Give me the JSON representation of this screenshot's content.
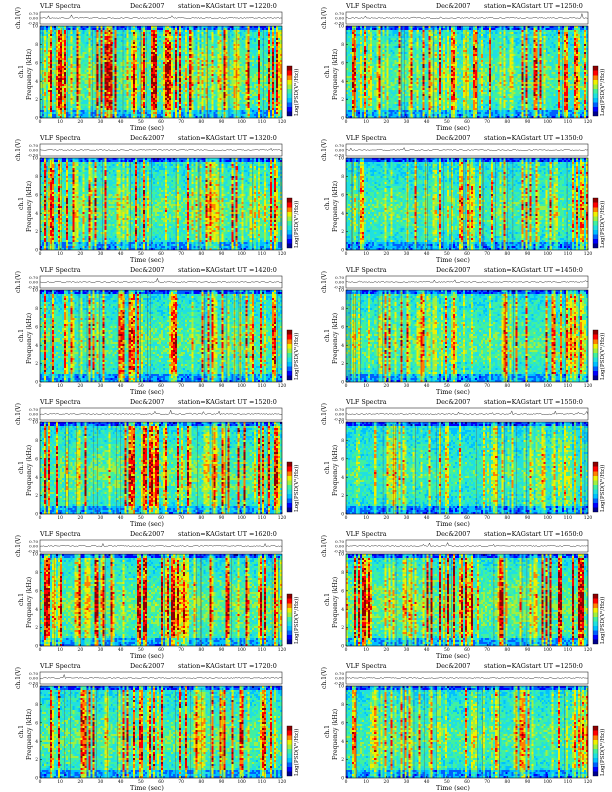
{
  "chart_data": [
    {
      "type": "heatmap",
      "title": "VLF Spectra",
      "date": "Dec&2007",
      "station": "station=KAG",
      "start": "start  UT  =1220:0",
      "xlabel": "Time  (sec)",
      "ylabel": "Frequency  (kHz)",
      "channel_label": "ch.1",
      "top_ylabel": "ch.1(V)",
      "colorbar_label": "Log(PSD(V²/Hz))",
      "x_ticks": [
        0,
        10,
        20,
        30,
        40,
        50,
        60,
        70,
        80,
        90,
        100,
        110,
        120
      ],
      "y_ticks": [
        0,
        2,
        4,
        6,
        8,
        10
      ],
      "top_ticks": [
        "0.70",
        "0.00",
        "-0.50"
      ],
      "xlim": [
        0,
        120
      ],
      "ylim": [
        0,
        10
      ],
      "grid": false,
      "seed": 11,
      "intensity": 1.15
    },
    {
      "type": "heatmap",
      "title": "VLF Spectra",
      "date": "Dec&2007",
      "station": "station=KAG",
      "start": "start  UT  =1250:0",
      "xlabel": "Time  (sec)",
      "ylabel": "Frequency  (kHz)",
      "channel_label": "ch.1",
      "top_ylabel": "ch.1(V)",
      "colorbar_label": "Log(PSD(V²/Hz))",
      "x_ticks": [
        0,
        10,
        20,
        30,
        40,
        50,
        60,
        70,
        80,
        90,
        100,
        110,
        120
      ],
      "y_ticks": [
        0,
        2,
        4,
        6,
        8,
        10
      ],
      "top_ticks": [
        "0.70",
        "0.00",
        "-0.50"
      ],
      "xlim": [
        0,
        120
      ],
      "ylim": [
        0,
        10
      ],
      "grid": false,
      "seed": 23,
      "intensity": 1.0
    },
    {
      "type": "heatmap",
      "title": "VLF Spectra",
      "date": "Dec&2007",
      "station": "station=KAG",
      "start": "start  UT  =1320:0",
      "xlabel": "Time  (sec)",
      "ylabel": "Frequency  (kHz)",
      "channel_label": "ch.1",
      "top_ylabel": "ch.1(V)",
      "colorbar_label": "Log(PSD(V²/Hz))",
      "x_ticks": [
        0,
        10,
        20,
        30,
        40,
        50,
        60,
        70,
        80,
        90,
        100,
        110,
        120
      ],
      "y_ticks": [
        0,
        2,
        4,
        6,
        8,
        10
      ],
      "top_ticks": [
        "0.70",
        "0.00",
        "-0.50"
      ],
      "xlim": [
        0,
        120
      ],
      "ylim": [
        0,
        10
      ],
      "grid": false,
      "seed": 37,
      "intensity": 1.05
    },
    {
      "type": "heatmap",
      "title": "VLF Spectra",
      "date": "Dec&2007",
      "station": "station=KAG",
      "start": "start  UT  =1350:0",
      "xlabel": "Time  (sec)",
      "ylabel": "Frequency  (kHz)",
      "channel_label": "ch.1",
      "top_ylabel": "ch.1(V)",
      "colorbar_label": "Log(PSD(V²/Hz))",
      "x_ticks": [
        0,
        10,
        20,
        30,
        40,
        50,
        60,
        70,
        80,
        90,
        100,
        110,
        120
      ],
      "y_ticks": [
        0,
        2,
        4,
        6,
        8,
        10
      ],
      "top_ticks": [
        "0.70",
        "0.00",
        "-0.50"
      ],
      "xlim": [
        0,
        120
      ],
      "ylim": [
        0,
        10
      ],
      "grid": false,
      "seed": 41,
      "intensity": 0.9
    },
    {
      "type": "heatmap",
      "title": "VLF Spectra",
      "date": "Dec&2007",
      "station": "station=KAG",
      "start": "start  UT  =1420:0",
      "xlabel": "Time  (sec)",
      "ylabel": "Frequency  (kHz)",
      "channel_label": "ch.1",
      "top_ylabel": "ch.1(V)",
      "colorbar_label": "Log(PSD(V²/Hz))",
      "x_ticks": [
        0,
        10,
        20,
        30,
        40,
        50,
        60,
        70,
        80,
        90,
        100,
        110,
        120
      ],
      "y_ticks": [
        0,
        2,
        4,
        6,
        8,
        10
      ],
      "top_ticks": [
        "0.70",
        "0.00",
        "-0.50"
      ],
      "xlim": [
        0,
        120
      ],
      "ylim": [
        0,
        10
      ],
      "grid": false,
      "seed": 53,
      "intensity": 1.0
    },
    {
      "type": "heatmap",
      "title": "VLF Spectra",
      "date": "Dec&2007",
      "station": "station=KAG",
      "start": "start  UT  =1450:0",
      "xlabel": "Time  (sec)",
      "ylabel": "Frequency  (kHz)",
      "channel_label": "ch.1",
      "top_ylabel": "ch.1(V)",
      "colorbar_label": "Log(PSD(V²/Hz))",
      "x_ticks": [
        0,
        10,
        20,
        30,
        40,
        50,
        60,
        70,
        80,
        90,
        100,
        110,
        120
      ],
      "y_ticks": [
        0,
        2,
        4,
        6,
        8,
        10
      ],
      "top_ticks": [
        "0.70",
        "0.00",
        "-0.50"
      ],
      "xlim": [
        0,
        120
      ],
      "ylim": [
        0,
        10
      ],
      "grid": false,
      "seed": 67,
      "intensity": 0.95
    },
    {
      "type": "heatmap",
      "title": "VLF Spectra",
      "date": "Dec&2007",
      "station": "station=KAG",
      "start": "start  UT  =1520:0",
      "xlabel": "Time  (sec)",
      "ylabel": "Frequency  (kHz)",
      "channel_label": "ch.1",
      "top_ylabel": "ch.1(V)",
      "colorbar_label": "Log(PSD(V²/Hz))",
      "x_ticks": [
        0,
        10,
        20,
        30,
        40,
        50,
        60,
        70,
        80,
        90,
        100,
        110,
        120
      ],
      "y_ticks": [
        0,
        2,
        4,
        6,
        8,
        10
      ],
      "top_ticks": [
        "0.70",
        "0.00",
        "-0.50"
      ],
      "xlim": [
        0,
        120
      ],
      "ylim": [
        0,
        10
      ],
      "grid": false,
      "seed": 71,
      "intensity": 1.1
    },
    {
      "type": "heatmap",
      "title": "VLF Spectra",
      "date": "Dec&2007",
      "station": "station=KAG",
      "start": "start  UT  =1550:0",
      "xlabel": "Time  (sec)",
      "ylabel": "Frequency  (kHz)",
      "channel_label": "ch.1",
      "top_ylabel": "ch.1(V)",
      "colorbar_label": "Log(PSD(V²/Hz))",
      "x_ticks": [
        0,
        10,
        20,
        30,
        40,
        50,
        60,
        70,
        80,
        90,
        100,
        110,
        120
      ],
      "y_ticks": [
        0,
        2,
        4,
        6,
        8,
        10
      ],
      "top_ticks": [
        "0.70",
        "0.00",
        "-0.50"
      ],
      "xlim": [
        0,
        120
      ],
      "ylim": [
        0,
        10
      ],
      "grid": false,
      "seed": 83,
      "intensity": 0.75
    },
    {
      "type": "heatmap",
      "title": "VLF Spectra",
      "date": "Dec&2007",
      "station": "station=KAG",
      "start": "start  UT  =1620:0",
      "xlabel": "Time  (sec)",
      "ylabel": "Frequency  (kHz)",
      "channel_label": "ch.1",
      "top_ylabel": "ch.1(V)",
      "colorbar_label": "Log(PSD(V²/Hz))",
      "x_ticks": [
        0,
        10,
        20,
        30,
        40,
        50,
        60,
        70,
        80,
        90,
        100,
        110,
        120
      ],
      "y_ticks": [
        0,
        2,
        4,
        6,
        8,
        10
      ],
      "top_ticks": [
        "0.70",
        "0.00",
        "-0.50"
      ],
      "xlim": [
        0,
        120
      ],
      "ylim": [
        0,
        10
      ],
      "grid": false,
      "seed": 97,
      "intensity": 1.15
    },
    {
      "type": "heatmap",
      "title": "VLF Spectra",
      "date": "Dec&2007",
      "station": "station=KAG",
      "start": "start  UT  =1650:0",
      "xlabel": "Time  (sec)",
      "ylabel": "Frequency  (kHz)",
      "channel_label": "ch.1",
      "top_ylabel": "ch.1(V)",
      "colorbar_label": "Log(PSD(V²/Hz))",
      "x_ticks": [
        0,
        10,
        20,
        30,
        40,
        50,
        60,
        70,
        80,
        90,
        100,
        110,
        120
      ],
      "y_ticks": [
        0,
        2,
        4,
        6,
        8,
        10
      ],
      "top_ticks": [
        "0.70",
        "0.00",
        "-0.50"
      ],
      "xlim": [
        0,
        120
      ],
      "ylim": [
        0,
        10
      ],
      "grid": false,
      "seed": 101,
      "intensity": 1.2
    },
    {
      "type": "heatmap",
      "title": "VLF Spectra",
      "date": "Dec&2007",
      "station": "station=KAG",
      "start": "start  UT  =1720:0",
      "xlabel": "Time  (sec)",
      "ylabel": "Frequency  (kHz)",
      "channel_label": "ch.1",
      "top_ylabel": "ch.1(V)",
      "colorbar_label": "Log(PSD(V²/Hz))",
      "x_ticks": [
        0,
        10,
        20,
        30,
        40,
        50,
        60,
        70,
        80,
        90,
        100,
        110,
        120
      ],
      "y_ticks": [
        0,
        2,
        4,
        6,
        8,
        10
      ],
      "top_ticks": [
        "0.70",
        "0.00",
        "-0.50"
      ],
      "xlim": [
        0,
        120
      ],
      "ylim": [
        0,
        10
      ],
      "grid": false,
      "seed": 113,
      "intensity": 1.05
    },
    {
      "type": "heatmap",
      "title": "VLF Spectra",
      "date": "Dec&2007",
      "station": "station=KAG",
      "start": "start  UT  =1250:0",
      "xlabel": "Time  (sec)",
      "ylabel": "Frequency  (kHz)",
      "channel_label": "ch.1",
      "top_ylabel": "ch.1(V)",
      "colorbar_label": "Log(PSD(V²/Hz))",
      "x_ticks": [
        0,
        10,
        20,
        30,
        40,
        50,
        60,
        70,
        80,
        90,
        100,
        110,
        120
      ],
      "y_ticks": [
        0,
        2,
        4,
        6,
        8,
        10
      ],
      "top_ticks": [
        "0.70",
        "0.00",
        "-0.50"
      ],
      "xlim": [
        0,
        120
      ],
      "ylim": [
        0,
        10
      ],
      "grid": false,
      "seed": 127,
      "intensity": 0.9
    }
  ],
  "colors": {
    "colormap": [
      "#00008f",
      "#0000ff",
      "#0060ff",
      "#00c0ff",
      "#20e0e0",
      "#40f0a0",
      "#a0f040",
      "#f0f000",
      "#ff8000",
      "#ff0000",
      "#8f0000"
    ]
  }
}
